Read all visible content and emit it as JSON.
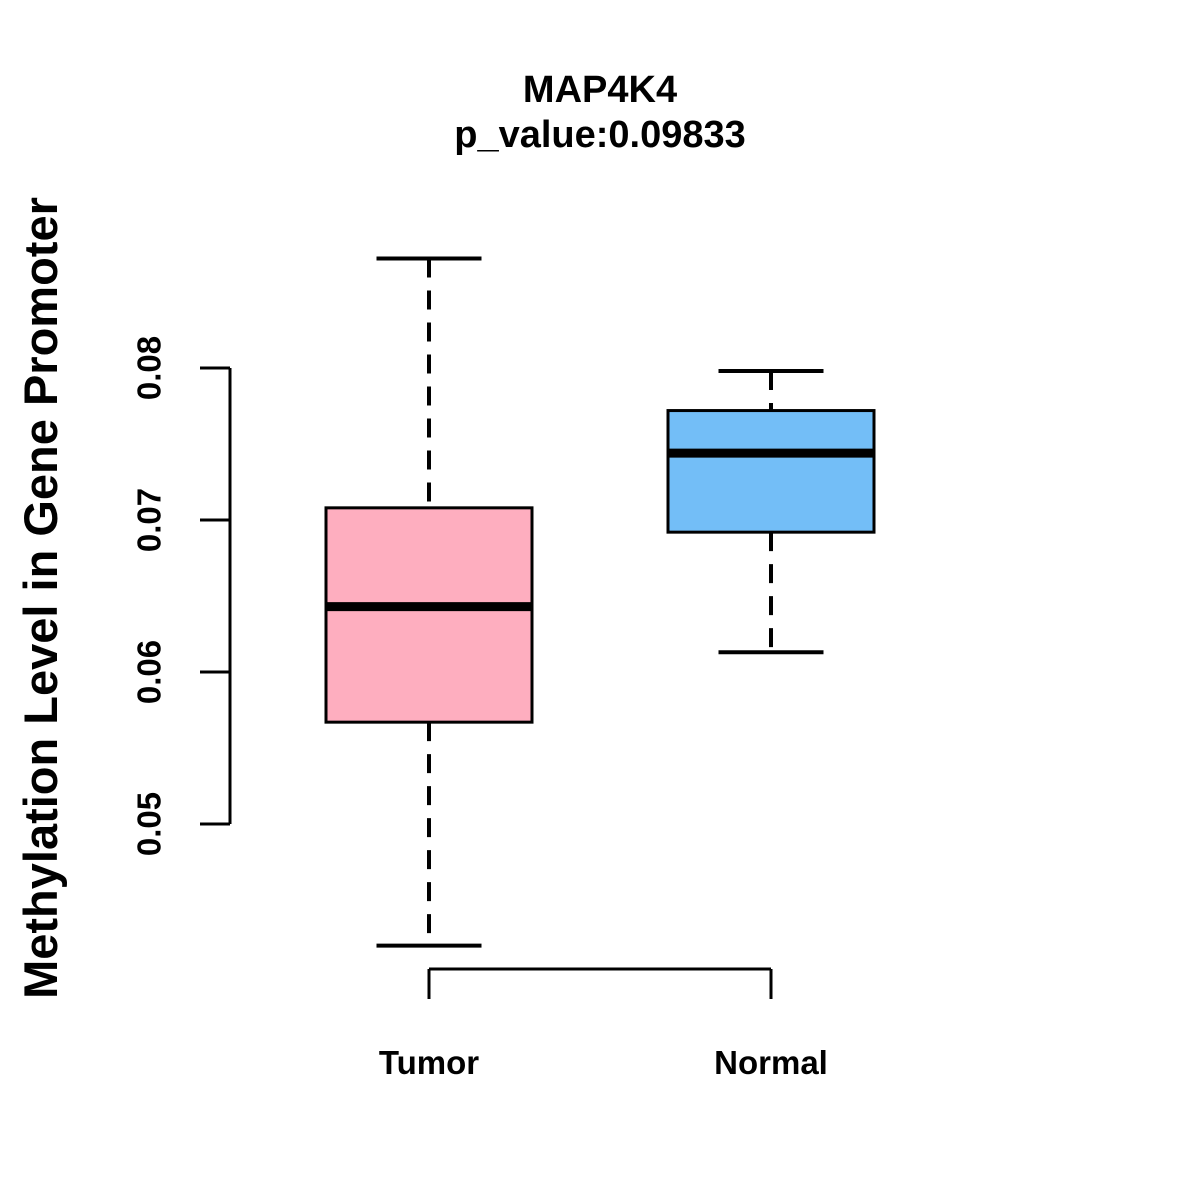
{
  "header": {
    "title": "MAP4K4",
    "subtitle": "p_value:0.09833"
  },
  "chart_data": {
    "type": "boxplot",
    "title": "MAP4K4",
    "subtitle": "p_value:0.09833",
    "ylabel": "Methylation Level in Gene Promoter",
    "xlabel": "",
    "categories": [
      "Tumor",
      "Normal"
    ],
    "series": [
      {
        "name": "Tumor",
        "lower_whisker": 0.042,
        "q1": 0.0567,
        "median": 0.0643,
        "q3": 0.0708,
        "upper_whisker": 0.0872,
        "fill_color": "#FEAEBF"
      },
      {
        "name": "Normal",
        "lower_whisker": 0.0613,
        "q1": 0.0692,
        "median": 0.0744,
        "q3": 0.0772,
        "upper_whisker": 0.0798,
        "fill_color": "#73BEF7"
      }
    ],
    "y_tick_labels": [
      "0.05",
      "0.06",
      "0.07",
      "0.08"
    ],
    "y_tick_values": [
      0.05,
      0.06,
      0.07,
      0.08
    ],
    "ylim": [
      0.0395,
      0.0885
    ],
    "axis_color": "#000000",
    "line_color": "#000000",
    "grid": false,
    "legend_position": "none",
    "whisker_style": "dashed",
    "outliers": []
  }
}
